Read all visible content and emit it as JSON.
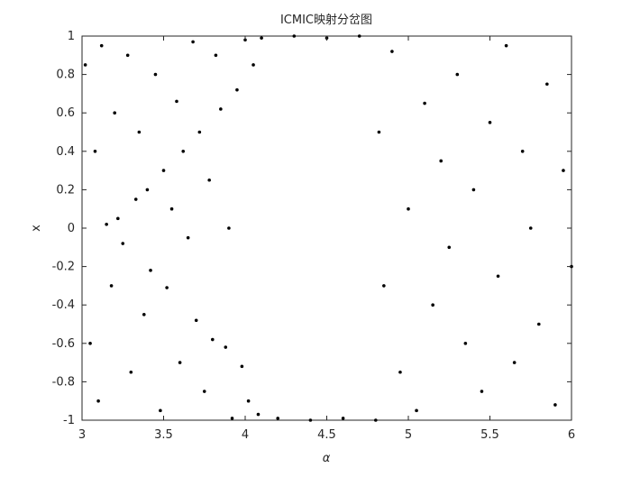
{
  "chart_data": {
    "type": "scatter",
    "title": "ICMIC映射分岔图",
    "x_label": "α",
    "y_label": "x",
    "color": "#000000",
    "x": [
      3.02,
      3.05,
      3.08,
      3.1,
      3.12,
      3.15,
      3.18,
      3.2,
      3.22,
      3.25,
      3.28,
      3.3,
      3.33,
      3.35,
      3.38,
      3.4,
      3.42,
      3.45,
      3.48,
      3.5,
      3.52,
      3.55,
      3.58,
      3.6,
      3.62,
      3.65,
      3.68,
      3.7,
      3.72,
      3.75,
      3.78,
      3.8,
      3.82,
      3.85,
      3.88,
      3.9,
      3.92,
      3.95,
      3.98,
      4.0,
      4.02,
      4.05,
      4.08,
      4.1,
      4.2,
      4.3,
      4.4,
      4.5,
      4.6,
      4.7,
      4.8,
      4.82,
      4.85,
      4.9,
      4.95,
      5.0,
      5.05,
      5.1,
      5.15,
      5.2,
      5.25,
      5.3,
      5.35,
      5.4,
      5.45,
      5.5,
      5.55,
      5.6,
      5.65,
      5.7,
      5.75,
      5.8,
      5.85,
      5.9,
      5.95,
      6.0
    ],
    "y": [
      0.85,
      -0.6,
      0.4,
      -0.9,
      0.95,
      0.02,
      -0.3,
      0.6,
      0.05,
      -0.08,
      0.9,
      -0.75,
      0.15,
      0.5,
      -0.45,
      0.2,
      -0.22,
      0.8,
      -0.95,
      0.3,
      -0.31,
      0.1,
      0.66,
      -0.7,
      0.4,
      -0.05,
      0.97,
      -0.48,
      0.5,
      -0.85,
      0.25,
      -0.58,
      0.9,
      0.62,
      -0.62,
      0.0,
      -0.99,
      0.72,
      -0.72,
      0.98,
      -0.9,
      0.85,
      -0.97,
      0.99,
      -0.99,
      1.0,
      -1.0,
      0.99,
      -0.99,
      1.0,
      -1.0,
      0.5,
      -0.3,
      0.92,
      -0.75,
      0.1,
      -0.95,
      0.65,
      -0.4,
      0.35,
      -0.1,
      0.8,
      -0.6,
      0.2,
      -0.85,
      0.55,
      -0.25,
      0.95,
      -0.7,
      0.4,
      0.0,
      -0.5,
      0.75,
      -0.92,
      0.3,
      -0.2
    ],
    "xlim": [
      3,
      6
    ],
    "xticks": [
      3,
      3.5,
      4,
      4.5,
      5,
      5.5,
      6
    ],
    "ylim": [
      -1,
      1
    ],
    "yticks": [
      -1,
      -0.8,
      -0.6,
      -0.4,
      -0.2,
      0,
      0.2,
      0.4,
      0.6,
      0.8,
      1
    ]
  }
}
